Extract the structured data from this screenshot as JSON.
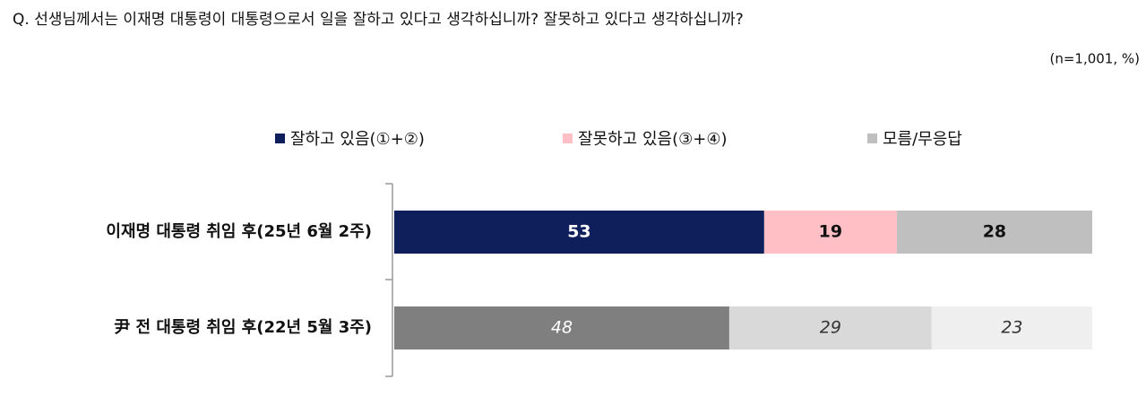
{
  "chart_data": {
    "type": "stacked_bar",
    "title": "Q. 선생님께서는 이재명 대통령이 대통령으로서 일을 잘하고 있다고 생각하십니까? 잘못하고 있다고 생각하십니까?",
    "note": "(n=1,001,  %)",
    "categories": [
      "이재명 대통령 취임 후(25년 6월 2주)",
      "尹 전 대통령 취임 후(22년 5월 3주)"
    ],
    "series": [
      {
        "name": "잘하고 있음(①+②)",
        "color": "#0f1f5c",
        "colors": [
          "#0f1f5c",
          "#7f7f7f"
        ],
        "values": [
          53,
          48
        ]
      },
      {
        "name": "잘못하고 있음(③+④)",
        "color": "#ffbfc4",
        "colors": [
          "#ffbfc4",
          "#d9d9d9"
        ],
        "values": [
          19,
          29
        ]
      },
      {
        "name": "모름/무응답",
        "color": "#bfbfbf",
        "colors": [
          "#bfbfbf",
          "#efefef"
        ],
        "values": [
          28,
          23
        ]
      }
    ],
    "legend": "top"
  }
}
